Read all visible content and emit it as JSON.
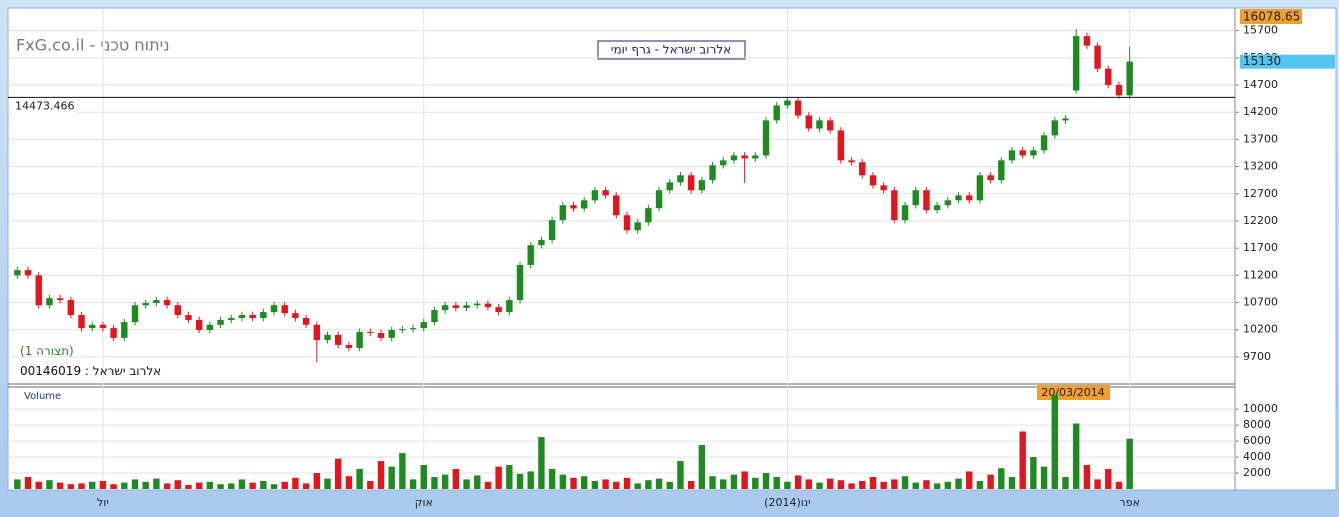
{
  "chart_data": [
    {
      "type": "candlestick",
      "title": "FxG.co.il - ניתוח טכני",
      "subtitle": "אלרוב ישראל - גרף יומי",
      "notes": [
        "(תצורה 1)",
        "אלרוב ישראל : 00146019"
      ],
      "categories": [
        null,
        null,
        null,
        null,
        null,
        null,
        null,
        null,
        "יול",
        null,
        null,
        null,
        null,
        null,
        null,
        null,
        null,
        null,
        null,
        null,
        null,
        null,
        null,
        null,
        null,
        null,
        null,
        null,
        null,
        null,
        null,
        null,
        null,
        null,
        null,
        null,
        null,
        null,
        "אוק",
        null,
        null,
        null,
        null,
        null,
        null,
        null,
        null,
        null,
        null,
        null,
        null,
        null,
        null,
        null,
        null,
        null,
        null,
        null,
        null,
        null,
        null,
        null,
        null,
        null,
        null,
        null,
        null,
        null,
        null,
        null,
        null,
        null,
        "(2014)ינו",
        null,
        null,
        null,
        null,
        null,
        null,
        null,
        null,
        null,
        null,
        null,
        null,
        null,
        null,
        null,
        null,
        null,
        null,
        null,
        null,
        null,
        null,
        null,
        null,
        null,
        null,
        null,
        null,
        null,
        null,
        null,
        "אפר"
      ],
      "open": [
        11200,
        11296,
        11200,
        10650,
        10780,
        10745,
        10470,
        10230,
        10290,
        10230,
        10050,
        10340,
        10650,
        10690,
        10745,
        10650,
        10470,
        10380,
        10195,
        10290,
        10380,
        10415,
        10470,
        10415,
        10525,
        10650,
        10505,
        10415,
        10290,
        10010,
        10105,
        9920,
        9865,
        10160,
        10140,
        10050,
        10195,
        10210,
        10230,
        10340,
        10560,
        10650,
        10600,
        10650,
        10680,
        10615,
        10525,
        10745,
        11390,
        11755,
        11850,
        12215,
        12490,
        12430,
        12580,
        12765,
        12670,
        12305,
        12030,
        12175,
        12435,
        12765,
        12910,
        13040,
        12765,
        12950,
        13225,
        13315,
        13405,
        13350,
        13405,
        14050,
        14325,
        14415,
        14140,
        13900,
        14050,
        13865,
        13315,
        13280,
        13040,
        12855,
        12765,
        12215,
        12490,
        12765,
        12400,
        12490,
        12580,
        12670,
        12580,
        13040,
        12950,
        13315,
        13500,
        13405,
        13500,
        13775,
        14050,
        14600,
        15600,
        15425,
        15000,
        14700,
        14510
      ],
      "high": [
        11356,
        11356,
        11260,
        10840,
        10840,
        10805,
        10530,
        10350,
        10350,
        10290,
        10400,
        10710,
        10750,
        10805,
        10805,
        10710,
        10530,
        10440,
        10350,
        10440,
        10475,
        10530,
        10530,
        10585,
        10710,
        10710,
        10565,
        10475,
        10350,
        10165,
        10165,
        9980,
        10220,
        10220,
        10200,
        10255,
        10270,
        10290,
        10400,
        10620,
        10710,
        10710,
        10710,
        10740,
        10740,
        10675,
        10805,
        11450,
        11815,
        11910,
        12275,
        12550,
        12550,
        12640,
        12825,
        12825,
        12730,
        12365,
        12235,
        12495,
        12825,
        12970,
        13100,
        13100,
        13010,
        13285,
        13375,
        13465,
        13465,
        13465,
        14110,
        14385,
        14475,
        14475,
        14200,
        14110,
        14110,
        13925,
        13375,
        13340,
        13100,
        12915,
        12825,
        12550,
        12825,
        12825,
        12550,
        12640,
        12730,
        12730,
        13100,
        13100,
        13375,
        13560,
        13560,
        13560,
        13835,
        14110,
        14145,
        15730,
        15660,
        15485,
        15060,
        14760,
        15400
      ],
      "low": [
        11140,
        11140,
        10590,
        10590,
        10685,
        10410,
        10170,
        10170,
        10170,
        9990,
        9990,
        10280,
        10590,
        10630,
        10590,
        10410,
        10320,
        10135,
        10135,
        10230,
        10320,
        10355,
        10355,
        10355,
        10465,
        10445,
        10355,
        10230,
        9600,
        9950,
        9860,
        9805,
        9805,
        10080,
        9990,
        9990,
        10135,
        10150,
        10170,
        10280,
        10500,
        10540,
        10540,
        10590,
        10555,
        10465,
        10465,
        10685,
        11330,
        11695,
        11790,
        12155,
        12370,
        12370,
        12520,
        12610,
        12245,
        11970,
        11970,
        12115,
        12375,
        12705,
        12850,
        12705,
        12705,
        12890,
        13165,
        13255,
        12900,
        13290,
        13345,
        13990,
        14265,
        14080,
        13840,
        13840,
        13805,
        13255,
        13220,
        12980,
        12795,
        12705,
        12155,
        12155,
        12430,
        12340,
        12340,
        12430,
        12520,
        12520,
        12520,
        12890,
        12890,
        13255,
        13345,
        13345,
        13440,
        13715,
        13990,
        14540,
        15365,
        14940,
        14640,
        14450,
        14450
      ],
      "close": [
        11296,
        11200,
        10650,
        10780,
        10745,
        10470,
        10230,
        10290,
        10230,
        10050,
        10340,
        10650,
        10690,
        10745,
        10650,
        10470,
        10380,
        10195,
        10290,
        10380,
        10415,
        10470,
        10415,
        10525,
        10650,
        10505,
        10415,
        10290,
        10010,
        10105,
        9920,
        9865,
        10160,
        10140,
        10050,
        10195,
        10210,
        10230,
        10340,
        10560,
        10650,
        10600,
        10650,
        10680,
        10615,
        10525,
        10745,
        11390,
        11755,
        11850,
        12215,
        12490,
        12430,
        12580,
        12765,
        12670,
        12305,
        12030,
        12175,
        12435,
        12765,
        12910,
        13040,
        12765,
        12950,
        13225,
        13315,
        13405,
        13350,
        13405,
        14050,
        14325,
        14415,
        14140,
        13900,
        14050,
        13865,
        13315,
        13280,
        13040,
        12855,
        12765,
        12215,
        12490,
        12765,
        12400,
        12490,
        12580,
        12670,
        12580,
        13040,
        12950,
        13315,
        13500,
        13405,
        13500,
        13775,
        14050,
        14085,
        15600,
        15425,
        15000,
        14700,
        14510,
        15130
      ],
      "up_color": "#1f8a1f",
      "down_color": "#e2161c",
      "ylim": [
        9220,
        16080
      ],
      "yticks": [
        9700,
        10200,
        10700,
        11200,
        11700,
        12200,
        12700,
        13200,
        13700,
        14200,
        14700,
        15200,
        15700
      ],
      "grid": true,
      "reference_line": 14473.466,
      "last_price": 15130,
      "max_label": 16078.65
    },
    {
      "type": "bar",
      "label": "Volume",
      "annotation": "20/03/2014",
      "values": [
        1200,
        1500,
        900,
        1100,
        800,
        600,
        700,
        900,
        1000,
        600,
        800,
        1200,
        900,
        1300,
        700,
        1100,
        500,
        800,
        900,
        600,
        700,
        1200,
        800,
        1000,
        600,
        900,
        1400,
        700,
        2000,
        1300,
        3800,
        1600,
        2500,
        1000,
        3500,
        2800,
        4500,
        1200,
        3000,
        1500,
        1800,
        2500,
        1200,
        1700,
        900,
        2800,
        3000,
        1900,
        2200,
        6500,
        2500,
        1800,
        1400,
        1600,
        1000,
        1200,
        900,
        1400,
        700,
        1100,
        1300,
        900,
        3500,
        1000,
        5500,
        1600,
        1200,
        1800,
        2200,
        1400,
        2000,
        1500,
        900,
        1700,
        1200,
        800,
        1300,
        1100,
        700,
        1000,
        1500,
        900,
        1200,
        1600,
        800,
        1100,
        700,
        900,
        1300,
        2200,
        1000,
        1800,
        2600,
        1500,
        7200,
        4000,
        2800,
        11800,
        1500,
        8200,
        3000,
        1200,
        2500,
        900,
        6300
      ],
      "ylim": [
        0,
        12900
      ],
      "yticks": [
        2000,
        4000,
        6000,
        8000,
        10000
      ],
      "grid": true
    }
  ]
}
